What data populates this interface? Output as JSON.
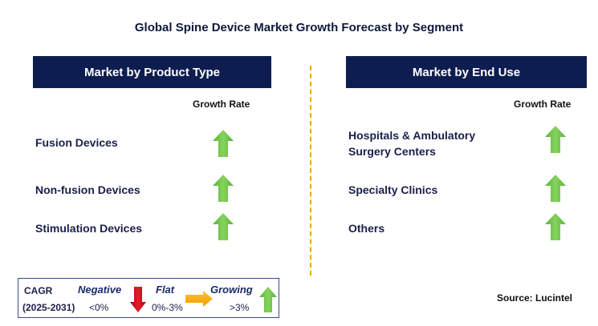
{
  "title": "Global Spine Device Market Growth Forecast by Segment",
  "left_panel": {
    "header": "Market by Product Type",
    "growth_label": "Growth Rate",
    "items": [
      {
        "label": "Fusion Devices",
        "trend": "growing"
      },
      {
        "label": "Non-fusion Devices",
        "trend": "growing"
      },
      {
        "label": "Stimulation Devices",
        "trend": "growing"
      }
    ]
  },
  "right_panel": {
    "header": "Market by End Use",
    "growth_label": "Growth Rate",
    "items": [
      {
        "label_line1": "Hospitals & Ambulatory",
        "label_line2": "Surgery Centers",
        "trend": "growing"
      },
      {
        "label_line1": "Specialty Clinics",
        "trend": "growing"
      },
      {
        "label_line1": "Others",
        "trend": "growing"
      }
    ]
  },
  "legend": {
    "cagr": "CAGR",
    "period": "(2025-2031)",
    "negative": {
      "label": "Negative",
      "range": "<0%",
      "color": "#d0101a"
    },
    "flat": {
      "label": "Flat",
      "range": "0%-3%",
      "color": "#f7a600"
    },
    "growing": {
      "label": "Growing",
      "range": ">3%",
      "color": "#6cc04a"
    }
  },
  "source": "Source: Lucintel",
  "colors": {
    "header_bg": "#0e1d4f",
    "divider": "#f4a21d",
    "arrow_green": "#6cc04a"
  }
}
